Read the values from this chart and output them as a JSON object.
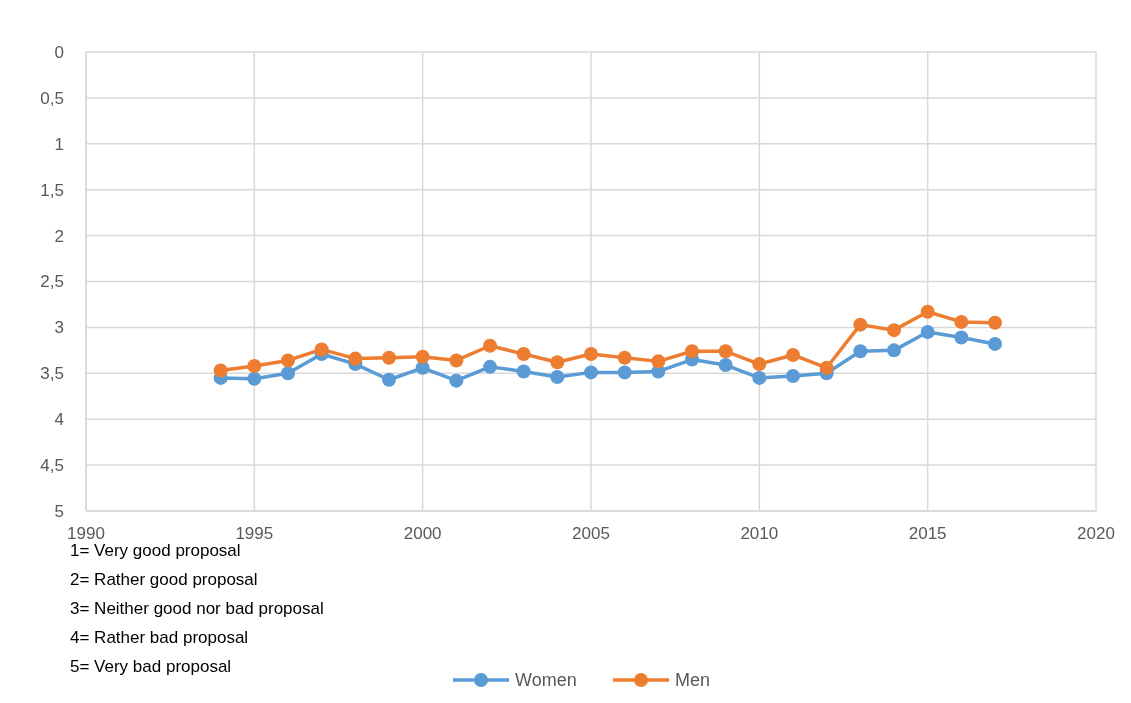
{
  "chart_data": {
    "type": "line",
    "x": [
      1994,
      1995,
      1996,
      1997,
      1998,
      1999,
      2000,
      2001,
      2002,
      2003,
      2004,
      2005,
      2006,
      2007,
      2008,
      2009,
      2010,
      2011,
      2012,
      2013,
      2014,
      2015,
      2016,
      2017
    ],
    "series": [
      {
        "name": "Women",
        "color": "#5b9bd5",
        "values": [
          3.55,
          3.56,
          3.5,
          3.29,
          3.4,
          3.57,
          3.44,
          3.58,
          3.43,
          3.48,
          3.54,
          3.49,
          3.49,
          3.48,
          3.35,
          3.41,
          3.55,
          3.53,
          3.5,
          3.26,
          3.25,
          3.05,
          3.11,
          3.18
        ]
      },
      {
        "name": "Men",
        "color": "#ed7d31",
        "values": [
          3.47,
          3.42,
          3.36,
          3.24,
          3.34,
          3.33,
          3.32,
          3.36,
          3.2,
          3.29,
          3.38,
          3.29,
          3.33,
          3.37,
          3.26,
          3.26,
          3.4,
          3.3,
          3.44,
          2.97,
          3.03,
          2.83,
          2.94,
          2.95
        ]
      }
    ],
    "xlim": [
      1990,
      2020
    ],
    "xticks": [
      1990,
      1995,
      2000,
      2005,
      2010,
      2015,
      2020
    ],
    "ylim": [
      5,
      0
    ],
    "yticks": [
      0,
      {
        "value": 0.5,
        "label": "0,5"
      },
      1,
      {
        "value": 1.5,
        "label": "1,5"
      },
      2,
      {
        "value": 2.5,
        "label": "2,5"
      },
      3,
      {
        "value": 3.5,
        "label": "3,5"
      },
      4,
      {
        "value": 4.5,
        "label": "4,5"
      },
      5
    ],
    "grid": true,
    "legend": "bottom",
    "marker": "circle",
    "line_style": "solid",
    "annotations": [
      "1= Very good proposal",
      "2= Rather good proposal",
      "3= Neither good nor bad proposal",
      "4= Rather bad proposal",
      "5= Very bad proposal"
    ]
  }
}
